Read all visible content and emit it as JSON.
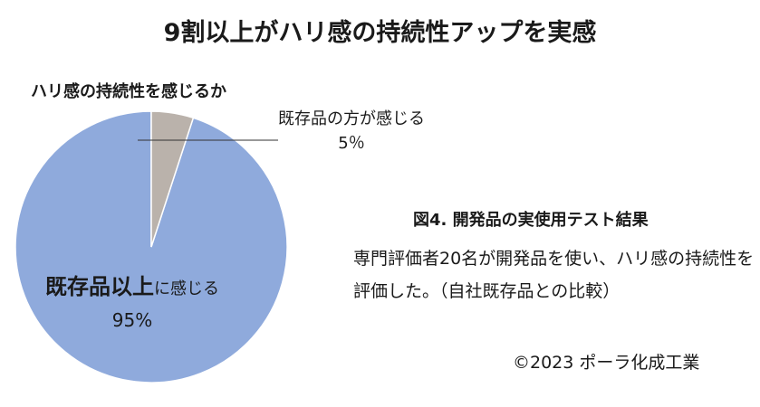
{
  "title": "9割以上がハリ感の持続性アップを実感",
  "chart_data": {
    "type": "pie",
    "title": "ハリ感の持続性を感じるか",
    "series": [
      {
        "values": [
          95,
          5
        ],
        "labels": [
          {
            "main": "既存品以上",
            "suffix": "に感じる",
            "pct": "95%"
          },
          {
            "main": "既存品の方が感じる",
            "pct": "5％"
          }
        ],
        "colors": [
          "#8faadc",
          "#bab2ab"
        ]
      }
    ],
    "start": "12 o'clock",
    "direction": "counterclockwise"
  },
  "figure": {
    "title": "図4. 開発品の実使用テスト結果",
    "description": "専門評価者20名が開発品を使い、ハリ感の持続性を評価した。（自社既存品との比較）"
  },
  "copyright": "©2023 ポーラ化成工業"
}
